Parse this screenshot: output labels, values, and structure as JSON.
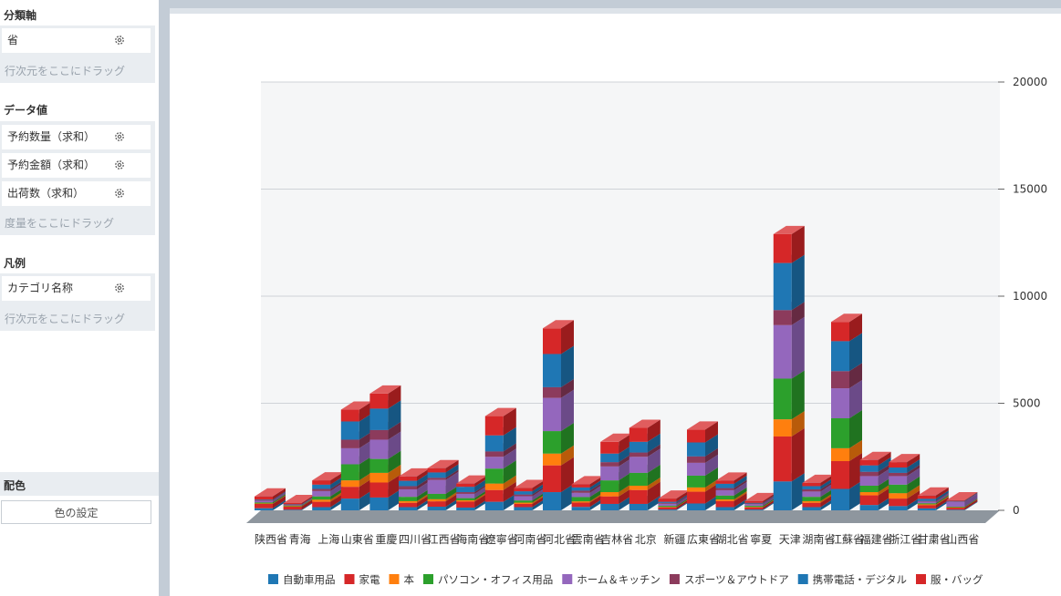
{
  "sidebar": {
    "category_axis": {
      "title": "分類軸",
      "fields": [
        "省"
      ],
      "drop_hint": "行次元をここにドラッグ"
    },
    "data_values": {
      "title": "データ値",
      "fields": [
        "予約数量（求和）",
        "予約金額（求和）",
        "出荷数（求和）"
      ],
      "drop_hint": "度量をここにドラッグ"
    },
    "legend": {
      "title": "凡例",
      "fields": [
        "カテゴリ名称"
      ],
      "drop_hint": "行次元をここにドラッグ"
    },
    "color": {
      "title": "配色",
      "button_label": "色の設定"
    }
  },
  "chart_data": {
    "type": "bar",
    "stacked": true,
    "three_d": true,
    "categories": [
      "陕西省",
      "青海",
      "上海",
      "山東省",
      "重慶",
      "四川省",
      "江西省",
      "海南省",
      "遼寧省",
      "河南省",
      "河北省",
      "雲南省",
      "吉林省",
      "北京",
      "新疆",
      "広東省",
      "湖北省",
      "寧夏",
      "天津",
      "湖南省",
      "江蘇省",
      "福建省",
      "浙江省",
      "甘粛省",
      "山西省"
    ],
    "series": [
      {
        "name": "自動車用品",
        "color": "#1f77b4",
        "values": [
          100,
          30,
          150,
          550,
          600,
          150,
          170,
          130,
          400,
          150,
          850,
          160,
          300,
          300,
          40,
          320,
          150,
          40,
          1350,
          150,
          1000,
          250,
          200,
          90,
          30
        ]
      },
      {
        "name": "家電",
        "color": "#d62728",
        "values": [
          200,
          150,
          250,
          550,
          700,
          200,
          250,
          280,
          550,
          150,
          1250,
          200,
          350,
          650,
          100,
          550,
          280,
          100,
          2100,
          200,
          1300,
          450,
          350,
          150,
          100
        ]
      },
      {
        "name": "本",
        "color": "#ff7f0e",
        "values": [
          20,
          10,
          100,
          300,
          450,
          80,
          100,
          60,
          300,
          60,
          550,
          60,
          200,
          200,
          20,
          200,
          80,
          20,
          800,
          80,
          600,
          150,
          250,
          40,
          10
        ]
      },
      {
        "name": "パソコン・オフィス用品",
        "color": "#2ca02c",
        "values": [
          50,
          30,
          150,
          750,
          650,
          200,
          250,
          100,
          700,
          100,
          1050,
          200,
          550,
          600,
          50,
          550,
          180,
          50,
          1900,
          200,
          1400,
          300,
          400,
          50,
          30
        ]
      },
      {
        "name": "ホーム＆キッチン",
        "color": "#9467bd",
        "values": [
          80,
          30,
          250,
          750,
          900,
          350,
          650,
          200,
          550,
          200,
          1550,
          200,
          650,
          750,
          100,
          600,
          250,
          80,
          2500,
          250,
          1400,
          450,
          400,
          80,
          230
        ]
      },
      {
        "name": "スポーツ＆アウトドア",
        "color": "#8c3b5c",
        "values": [
          20,
          10,
          100,
          400,
          450,
          150,
          100,
          80,
          250,
          80,
          500,
          100,
          200,
          200,
          40,
          300,
          100,
          30,
          700,
          100,
          800,
          200,
          150,
          30,
          20
        ]
      },
      {
        "name": "携帯電話・デジタル",
        "color": "#1f77b4",
        "values": [
          30,
          20,
          200,
          850,
          1000,
          250,
          250,
          250,
          750,
          150,
          1550,
          150,
          400,
          500,
          50,
          650,
          200,
          30,
          2200,
          150,
          1400,
          300,
          250,
          100,
          20
        ]
      },
      {
        "name": "服・バッグ",
        "color": "#d62728",
        "values": [
          150,
          60,
          200,
          550,
          700,
          200,
          200,
          150,
          900,
          150,
          1200,
          150,
          550,
          650,
          150,
          600,
          150,
          80,
          1350,
          150,
          900,
          250,
          250,
          150,
          30
        ]
      }
    ],
    "y_axis": {
      "position": "right",
      "ylim": [
        0,
        20000
      ],
      "ticks": [
        "0",
        "5000",
        "10000",
        "15000",
        "20000"
      ]
    },
    "grid": true,
    "legend_position": "bottom"
  }
}
